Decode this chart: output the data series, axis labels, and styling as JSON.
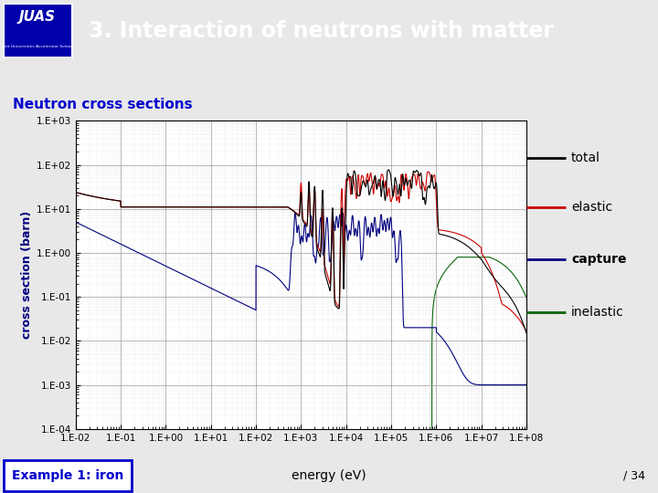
{
  "title": "3. Interaction of neutrons with matter",
  "subtitle": "Neutron cross sections",
  "xlabel": "energy (eV)",
  "ylabel": "cross section (barn)",
  "example_label": "Example 1: iron",
  "page_number": "/ 34",
  "header_bg": "#4a6b8a",
  "header_text_color": "#ffffff",
  "slide_bg": "#e8e8e8",
  "subtitle_color": "#0000cc",
  "example_box_color": "#0000cc",
  "ylabel_color": "#000080",
  "legend_entries": [
    "total",
    "elastic",
    "capture",
    "inelastic"
  ],
  "legend_colors": [
    "#000000",
    "#cc0000",
    "#000080",
    "#006600"
  ],
  "plot_bg": "#ffffff",
  "grid_color": "#999999",
  "juas_bg": "#0000aa",
  "bottom_bar_color": "#ffff00"
}
